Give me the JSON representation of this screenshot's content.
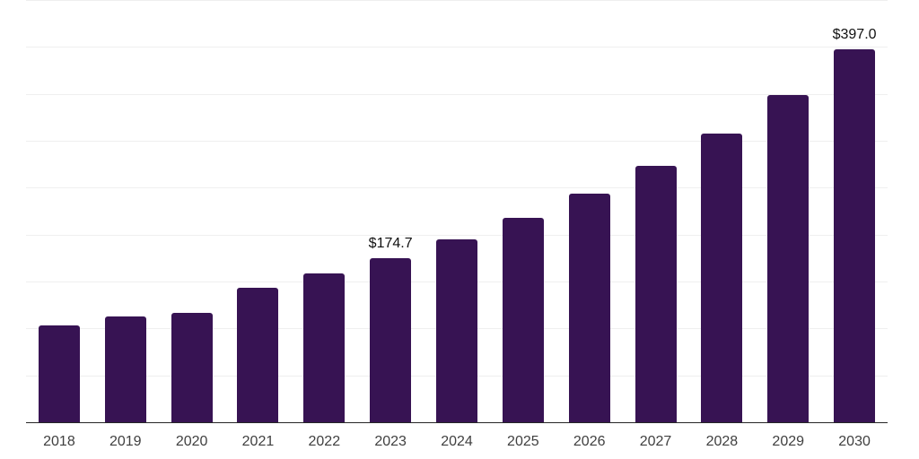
{
  "chart_data": {
    "type": "bar",
    "title": "",
    "xlabel": "",
    "ylabel": "",
    "categories": [
      "2018",
      "2019",
      "2020",
      "2021",
      "2022",
      "2023",
      "2024",
      "2025",
      "2026",
      "2027",
      "2028",
      "2029",
      "2030"
    ],
    "values": [
      103.2,
      112.5,
      117.0,
      142.9,
      158.5,
      174.7,
      194.8,
      217.8,
      244.0,
      273.1,
      308.0,
      348.8,
      397.0
    ],
    "bar_labels": [
      "",
      "",
      "",
      "",
      "",
      "$174.7",
      "",
      "",
      "",
      "",
      "",
      "",
      "$397.0"
    ],
    "ylim": [
      0,
      450
    ],
    "grid_step": 50,
    "grid": true,
    "legend_position": "none",
    "colors": {
      "bar": "#371353",
      "grid_line": "#efefef",
      "axis_line": "#262626",
      "tick_label": "#404040",
      "data_label": "#111111",
      "background": "#ffffff"
    }
  }
}
